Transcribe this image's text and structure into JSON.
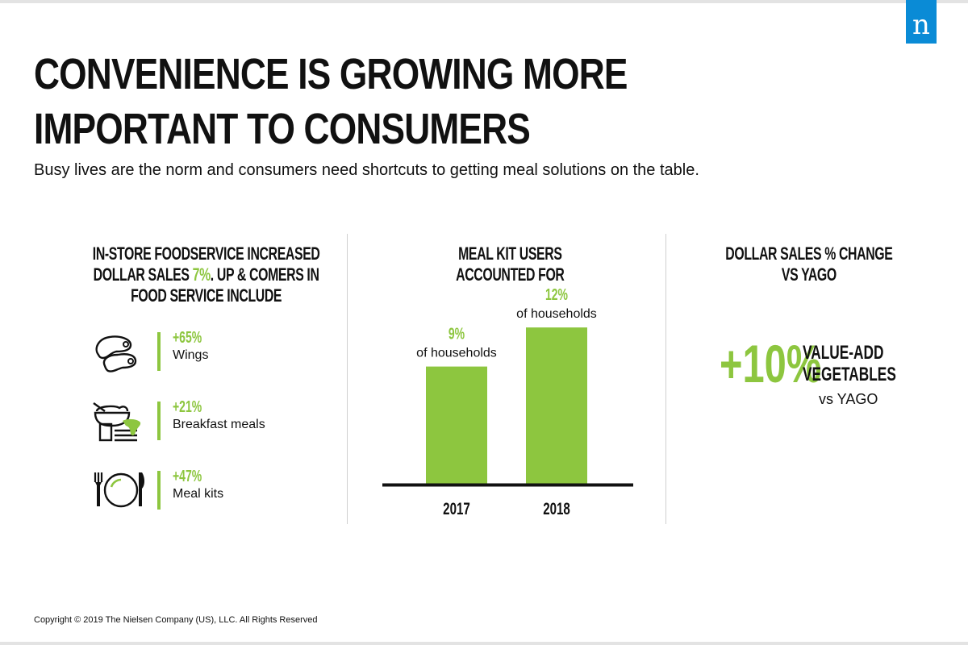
{
  "brand": {
    "logo_letter": "n",
    "logo_color": "#0a8bd6",
    "accent": "#8dc63f"
  },
  "header": {
    "title": "CONVENIENCE IS GROWING MORE IMPORTANT TO CONSUMERS",
    "subtitle": "Busy lives are the norm and consumers need shortcuts to getting meal solutions on the table."
  },
  "left_panel": {
    "heading_line1": "IN-STORE FOODSERVICE INCREASED",
    "heading_line2_pre": "DOLLAR SALES ",
    "heading_highlight": "7%",
    "heading_line2_post": ". UP & COMERS IN",
    "heading_line3": "FOOD SERVICE INCLUDE",
    "items": [
      {
        "icon": "chicken-wings-icon",
        "pct": "+65%",
        "label": "Wings"
      },
      {
        "icon": "breakfast-meal-icon",
        "pct": "+21%",
        "label": "Breakfast meals"
      },
      {
        "icon": "plate-utensils-icon",
        "pct": "+47%",
        "label": "Meal kits"
      }
    ]
  },
  "middle_panel": {
    "heading_line1": "MEAL KIT USERS",
    "heading_line2": "ACCOUNTED FOR"
  },
  "chart_data": {
    "type": "bar",
    "categories": [
      "2017",
      "2018"
    ],
    "values": [
      9,
      12
    ],
    "value_labels": [
      "9%",
      "12%"
    ],
    "annotation": "of households",
    "ylim": [
      0,
      13
    ],
    "grid": false,
    "bar_color": "#8dc63f"
  },
  "right_panel": {
    "heading_line1": "DOLLAR SALES % CHANGE",
    "heading_line2": "VS YAGO",
    "big_value": "+10%",
    "label_line1": "VALUE-ADD",
    "label_line2": "VEGETABLES",
    "vs_label": "vs YAGO"
  },
  "footer": {
    "copyright": "Copyright © 2019 The Nielsen Company (US), LLC. All Rights Reserved"
  }
}
